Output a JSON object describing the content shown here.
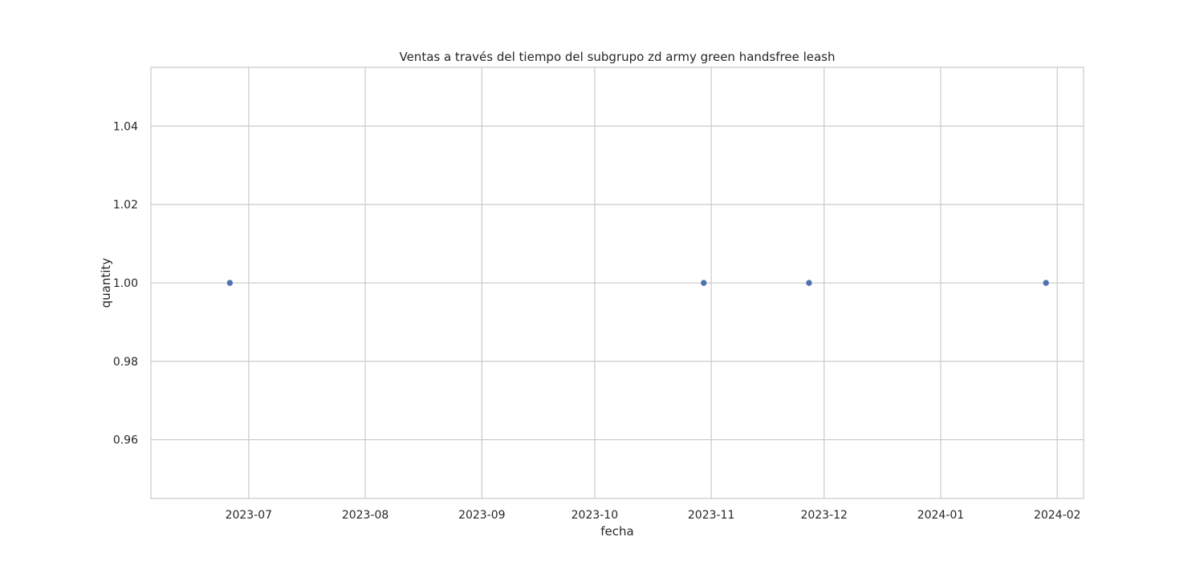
{
  "chart_data": {
    "type": "scatter",
    "title": "Ventas a través del tiempo del subgrupo zd army green handsfree leash",
    "xlabel": "fecha",
    "ylabel": "quantity",
    "x_axis": "date",
    "xlim": [
      "2023-06-05",
      "2024-02-08"
    ],
    "ylim": [
      0.945,
      1.055
    ],
    "x_ticks": [
      "2023-07-01",
      "2023-08-01",
      "2023-09-01",
      "2023-10-01",
      "2023-11-01",
      "2023-12-01",
      "2024-01-01",
      "2024-02-01"
    ],
    "x_tick_labels": [
      "2023-07",
      "2023-08",
      "2023-09",
      "2023-10",
      "2023-11",
      "2023-12",
      "2024-01",
      "2024-02"
    ],
    "y_ticks": [
      0.96,
      0.98,
      1.0,
      1.02,
      1.04
    ],
    "y_tick_labels": [
      "0.96",
      "0.98",
      "1.00",
      "1.02",
      "1.04"
    ],
    "points": [
      {
        "x": "2023-06-26",
        "y": 1.0
      },
      {
        "x": "2023-10-30",
        "y": 1.0
      },
      {
        "x": "2023-11-27",
        "y": 1.0
      },
      {
        "x": "2024-01-29",
        "y": 1.0
      }
    ],
    "grid": true,
    "colors": {
      "point": "#4c72b0",
      "grid": "#cccccc",
      "frame": "#cccccc",
      "text": "#262626"
    }
  }
}
